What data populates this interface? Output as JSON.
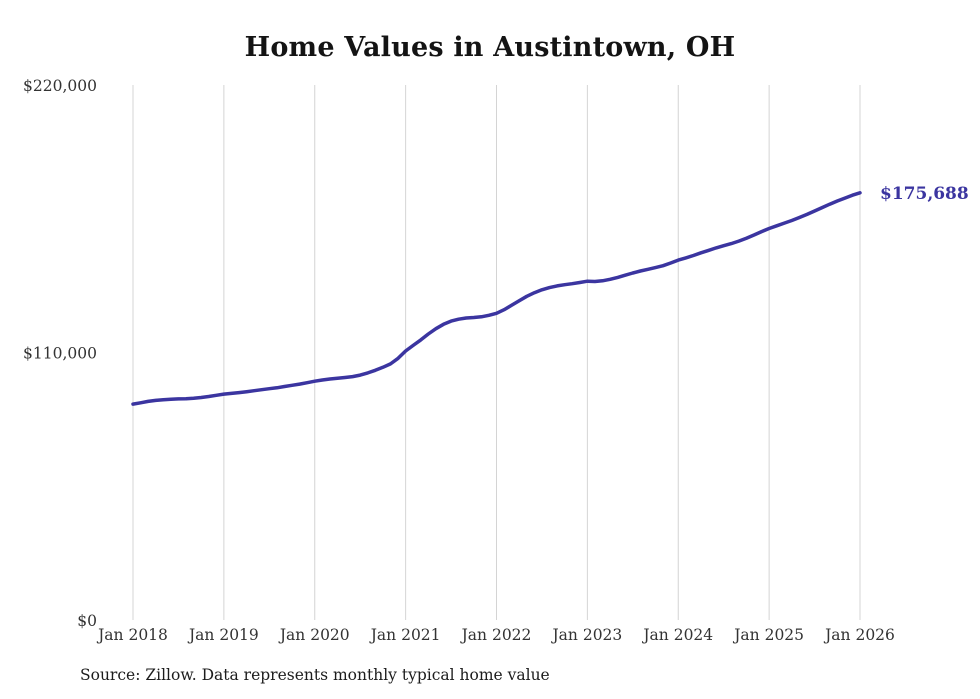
{
  "title": "Home Values in Austintown, OH",
  "source_note": "Source: Zillow. Data represents monthly typical home value",
  "colors": {
    "line": "#3B35A0",
    "end_label": "#3B35A0",
    "grid": "#D4D4D4",
    "axis_text": "#333333",
    "title_text": "#141414",
    "source_text": "#1C1C1C",
    "background": "#FFFFFF"
  },
  "chart_data": {
    "type": "line",
    "title": "Home Values in Austintown, OH",
    "xlabel": "",
    "ylabel": "",
    "grid": "vertical-only",
    "legend_position": "none",
    "ylim": [
      0,
      220000
    ],
    "start_month": "2018-01",
    "end_month": "2026-01",
    "x_tick_labels": [
      "Jan 2018",
      "Jan 2019",
      "Jan 2020",
      "Jan 2021",
      "Jan 2022",
      "Jan 2023",
      "Jan 2024",
      "Jan 2025",
      "Jan 2026"
    ],
    "months_per_tick": 12,
    "y_ticks": [
      {
        "label": "$0",
        "value": 0
      },
      {
        "label": "$110,000",
        "value": 110000
      },
      {
        "label": "$220,000",
        "value": 220000
      }
    ],
    "final_value": 175688,
    "final_label": "$175,688",
    "values": [
      88800,
      89300,
      89900,
      90300,
      90600,
      90800,
      90900,
      91000,
      91200,
      91500,
      91900,
      92400,
      92900,
      93200,
      93500,
      93900,
      94300,
      94700,
      95100,
      95500,
      96000,
      96500,
      97000,
      97600,
      98200,
      98700,
      99100,
      99400,
      99700,
      100100,
      100700,
      101600,
      102700,
      103900,
      105300,
      107600,
      110600,
      112900,
      115200,
      117600,
      119800,
      121600,
      122900,
      123700,
      124200,
      124400,
      124700,
      125300,
      126100,
      127600,
      129400,
      131300,
      133100,
      134600,
      135800,
      136700,
      137400,
      137900,
      138300,
      138800,
      139300,
      139200,
      139500,
      140100,
      140900,
      141800,
      142700,
      143500,
      144200,
      144900,
      145700,
      146800,
      148000,
      148900,
      149900,
      151000,
      152000,
      153000,
      153900,
      154800,
      155800,
      157000,
      158300,
      159700,
      161000,
      162100,
      163200,
      164300,
      165500,
      166800,
      168200,
      169600,
      171000,
      172300,
      173500,
      174700,
      175688
    ]
  }
}
